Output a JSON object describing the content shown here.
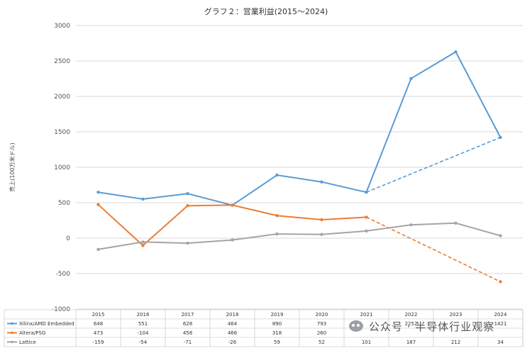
{
  "chart_data": {
    "type": "line",
    "title": "グラフ２：営業利益(2015〜2024)",
    "ylabel": "売上(100万米ドル)",
    "ylim": [
      -1000,
      3000
    ],
    "yticks": [
      3000,
      2500,
      2000,
      1500,
      1000,
      500,
      0,
      -500,
      -1000
    ],
    "categories": [
      "2015",
      "2016",
      "2017",
      "2018",
      "2019",
      "2020",
      "2021",
      "2022",
      "2023",
      "2024"
    ],
    "grid": true,
    "legend": "table-below",
    "series": [
      {
        "name": "Xilinx/AMD Embedded",
        "color": "#5b9bd5",
        "values": [
          648,
          551,
          628,
          464,
          890,
          793,
          648,
          2252,
          2628,
          1421
        ],
        "labels": [
          "648",
          "551",
          "628",
          "464",
          "890",
          "793",
          "",
          "2252",
          "",
          "1421"
        ],
        "projection": [
          648,
          1421
        ]
      },
      {
        "name": "Altera/PSG",
        "color": "#ed7d31",
        "values": [
          473,
          -104,
          458,
          466,
          318,
          260,
          296,
          null,
          null,
          -615
        ],
        "labels": [
          "473",
          "-104",
          "458",
          "466",
          "318",
          "260",
          "",
          "",
          "",
          ""
        ],
        "projection": [
          296,
          -615
        ]
      },
      {
        "name": "Lattice",
        "color": "#a5a5a5",
        "values": [
          -159,
          -54,
          -71,
          -26,
          59,
          52,
          101,
          187,
          212,
          34
        ],
        "labels": [
          "-159",
          "-54",
          "-71",
          "-26",
          "59",
          "52",
          "101",
          "187",
          "212",
          "34"
        ]
      }
    ]
  },
  "watermark": {
    "text": "公众号 · 半导体行业观察",
    "icon": "wechat-icon"
  }
}
